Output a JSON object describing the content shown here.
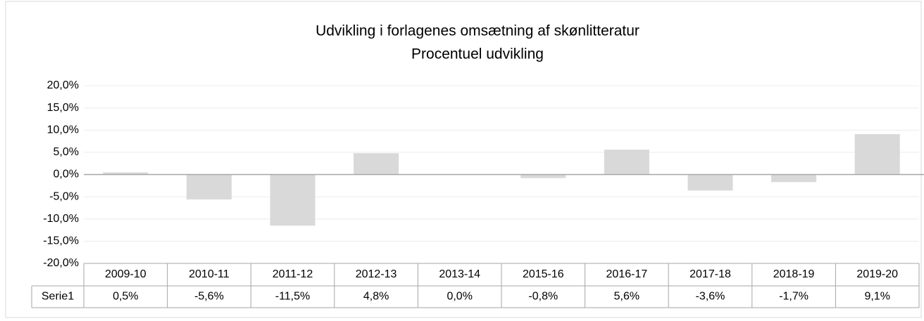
{
  "chart_data": {
    "type": "bar",
    "title": "Udvikling i forlagenes omsætning af skønlitteratur",
    "subtitle": "Procentuel udvikling",
    "categories": [
      "2009-10",
      "2010-11",
      "2011-12",
      "2012-13",
      "2013-14",
      "2015-16",
      "2016-17",
      "2017-18",
      "2018-19",
      "2019-20"
    ],
    "series": [
      {
        "name": "Serie1",
        "color": "#d9d9d9",
        "values": [
          0.5,
          -5.6,
          -11.5,
          4.8,
          0.0,
          -0.8,
          5.6,
          -3.6,
          -1.7,
          9.1
        ],
        "value_labels": [
          "0,5%",
          "-5,6%",
          "-11,5%",
          "4,8%",
          "0,0%",
          "-0,8%",
          "5,6%",
          "-3,6%",
          "-1,7%",
          "9,1%"
        ]
      }
    ],
    "ylim": [
      -20,
      20
    ],
    "yticks": [
      {
        "value": -20,
        "label": "-20,0%"
      },
      {
        "value": -15,
        "label": "-15,0%"
      },
      {
        "value": -10,
        "label": "-10,0%"
      },
      {
        "value": -5,
        "label": "-5,0%"
      },
      {
        "value": 0,
        "label": "0,0%"
      },
      {
        "value": 5,
        "label": "5,0%"
      },
      {
        "value": 10,
        "label": "10,0%"
      },
      {
        "value": 15,
        "label": "15,0%"
      },
      {
        "value": 20,
        "label": "20,0%"
      }
    ],
    "grid": true
  }
}
